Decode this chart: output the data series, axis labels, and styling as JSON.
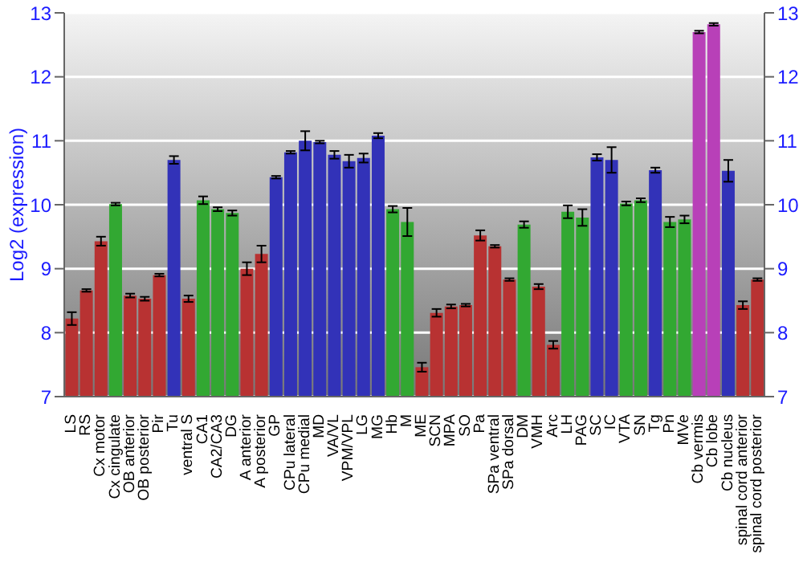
{
  "chart_data": {
    "type": "bar",
    "ylabel": "Log2 (expression)",
    "categories": [
      "LS",
      "RS",
      "Cx motor",
      "Cx cingulate",
      "OB anterior",
      "OB posterior",
      "Pir",
      "Tu",
      "ventral S",
      "CA1",
      "CA2/CA3",
      "DG",
      "A anterior",
      "A posterior",
      "GP",
      "CPu lateral",
      "CPu medial",
      "MD",
      "VA/VL",
      "VPM/VPL",
      "LG",
      "MG",
      "Hb",
      "M",
      "ME",
      "SCN",
      "MPA",
      "SO",
      "Pa",
      "SPa ventral",
      "SPa dorsal",
      "DM",
      "VMH",
      "Arc",
      "LH",
      "PAG",
      "SC",
      "IC",
      "VTA",
      "SN",
      "Tg",
      "Pn",
      "MVe",
      "Cb vermis",
      "Cb lobe",
      "Cb nucleus",
      "spinal cord anterior",
      "spinal cord posterior"
    ],
    "values": [
      8.22,
      8.66,
      9.43,
      10.01,
      8.58,
      8.53,
      8.9,
      10.7,
      8.53,
      10.07,
      9.93,
      9.87,
      9.0,
      9.23,
      10.43,
      10.82,
      11.0,
      10.98,
      10.78,
      10.68,
      10.73,
      11.08,
      9.93,
      9.73,
      7.46,
      8.31,
      8.41,
      8.43,
      9.52,
      9.35,
      8.83,
      9.69,
      8.72,
      7.81,
      9.89,
      9.8,
      10.74,
      10.7,
      10.02,
      10.07,
      10.54,
      9.73,
      9.77,
      12.7,
      12.82,
      10.53,
      8.43,
      8.83
    ],
    "errors": [
      0.1,
      0.02,
      0.07,
      0.02,
      0.03,
      0.03,
      0.02,
      0.06,
      0.05,
      0.06,
      0.03,
      0.04,
      0.1,
      0.13,
      0.02,
      0.02,
      0.15,
      0.02,
      0.06,
      0.1,
      0.07,
      0.04,
      0.05,
      0.22,
      0.07,
      0.06,
      0.03,
      0.02,
      0.08,
      0.02,
      0.02,
      0.05,
      0.04,
      0.06,
      0.1,
      0.13,
      0.05,
      0.2,
      0.03,
      0.03,
      0.04,
      0.08,
      0.06,
      0.02,
      0.02,
      0.17,
      0.06,
      0.02
    ],
    "colors": [
      "#b83232",
      "#b83232",
      "#b83232",
      "#32a832",
      "#b83232",
      "#b83232",
      "#b83232",
      "#3232b8",
      "#b83232",
      "#32a832",
      "#32a832",
      "#32a832",
      "#b83232",
      "#b83232",
      "#3232b8",
      "#3232b8",
      "#3232b8",
      "#3232b8",
      "#3232b8",
      "#3232b8",
      "#3232b8",
      "#3232b8",
      "#32a832",
      "#32a832",
      "#b83232",
      "#b83232",
      "#b83232",
      "#b83232",
      "#b83232",
      "#b83232",
      "#b83232",
      "#32a832",
      "#b83232",
      "#b83232",
      "#32a832",
      "#32a832",
      "#3232b8",
      "#3232b8",
      "#32a832",
      "#32a832",
      "#3232b8",
      "#32a832",
      "#32a832",
      "#b840b8",
      "#b840b8",
      "#3232b8",
      "#b83232",
      "#b83232"
    ],
    "ylim": [
      7,
      13
    ],
    "yticks": [
      7,
      8,
      9,
      10,
      11,
      12,
      13
    ],
    "y2lim": [
      7,
      13
    ],
    "y2ticks": [
      7,
      8,
      9,
      10,
      11,
      12,
      13
    ],
    "grid": "y",
    "legend": false
  }
}
